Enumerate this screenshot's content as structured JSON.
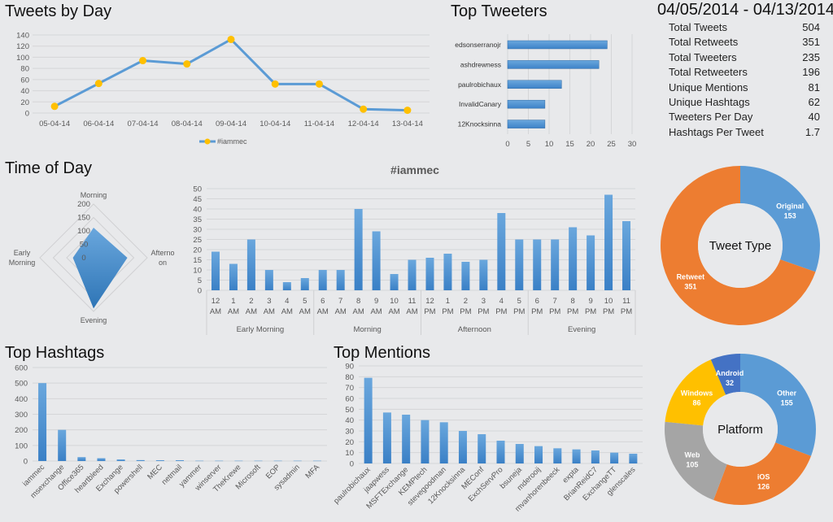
{
  "titles": {
    "tweets_by_day": "Tweets by Day",
    "top_tweeters": "Top Tweeters",
    "date_range": "04/05/2014 - 04/13/2014",
    "time_of_day": "Time of Day",
    "top_hashtags": "Top Hashtags",
    "top_mentions": "Top Mentions"
  },
  "stats": [
    {
      "label": "Total Tweets",
      "value": "504"
    },
    {
      "label": "Total Retweets",
      "value": "351"
    },
    {
      "label": "Total Tweeters",
      "value": "235"
    },
    {
      "label": "Total Retweeters",
      "value": "196"
    },
    {
      "label": "Unique Mentions",
      "value": "81"
    },
    {
      "label": "Unique Hashtags",
      "value": "62"
    },
    {
      "label": "Tweeters Per Day",
      "value": "40"
    },
    {
      "label": "Hashtags Per Tweet",
      "value": "1.7"
    }
  ],
  "colors": {
    "blue": "#5b9bd5",
    "dark_blue": "#2e75b6",
    "orange": "#ed7d31",
    "gray": "#a5a5a5",
    "yellow": "#ffc000",
    "navy": "#4472c4"
  },
  "chart_data": [
    {
      "id": "tweets_by_day",
      "type": "line",
      "title": "Tweets by Day",
      "categories": [
        "05-04-14",
        "06-04-14",
        "07-04-14",
        "08-04-14",
        "09-04-14",
        "10-04-14",
        "11-04-14",
        "12-04-14",
        "13-04-14"
      ],
      "series": [
        {
          "name": "#iammec",
          "values": [
            12,
            53,
            94,
            88,
            132,
            52,
            52,
            7,
            5
          ]
        }
      ],
      "ylim": [
        0,
        140
      ],
      "yticks": [
        0,
        20,
        40,
        60,
        80,
        100,
        120,
        140
      ],
      "grid": true,
      "legend": "bottom"
    },
    {
      "id": "top_tweeters",
      "type": "bar",
      "orientation": "horizontal",
      "title": "Top Tweeters",
      "categories": [
        "edsonserranojr",
        "ashdrewness",
        "paulrobichaux",
        "InvalidCanary",
        "12Knocksinna"
      ],
      "values": [
        24,
        22,
        13,
        9,
        9
      ],
      "xlim": [
        0,
        30
      ],
      "xticks": [
        0,
        5,
        10,
        15,
        20,
        25,
        30
      ]
    },
    {
      "id": "time_of_day",
      "type": "radar",
      "title": "Time of Day",
      "categories": [
        "Morning",
        "Afternoon",
        "Evening",
        "Early Morning"
      ],
      "values": [
        112,
        126,
        189,
        77
      ],
      "rlim": [
        0,
        200
      ],
      "rticks": [
        0,
        50,
        100,
        150,
        200
      ]
    },
    {
      "id": "hourly",
      "type": "bar",
      "title": "#iammec",
      "categories": [
        "12 AM",
        "1 AM",
        "2 AM",
        "3 AM",
        "4 AM",
        "5 AM",
        "6 AM",
        "7 AM",
        "8 AM",
        "9 AM",
        "10 AM",
        "11 AM",
        "12 PM",
        "1 PM",
        "2 PM",
        "3 PM",
        "4 PM",
        "5 PM",
        "6 PM",
        "7 PM",
        "8 PM",
        "9 PM",
        "10 PM",
        "11 PM"
      ],
      "groups": [
        "Early Morning",
        "Morning",
        "Afternoon",
        "Evening"
      ],
      "values": [
        19,
        13,
        25,
        10,
        4,
        6,
        10,
        10,
        40,
        29,
        8,
        15,
        16,
        18,
        14,
        15,
        38,
        25,
        25,
        25,
        31,
        27,
        47,
        34
      ],
      "ylim": [
        0,
        50
      ],
      "yticks": [
        0,
        5,
        10,
        15,
        20,
        25,
        30,
        35,
        40,
        45,
        50
      ]
    },
    {
      "id": "tweet_type",
      "type": "pie",
      "title": "Tweet Type",
      "categories": [
        "Original",
        "Retweet"
      ],
      "values": [
        153,
        351
      ]
    },
    {
      "id": "top_hashtags",
      "type": "bar",
      "title": "Top Hashtags",
      "categories": [
        "iammec",
        "msexchange",
        "Office365",
        "heartbleed",
        "Exchange",
        "powershell",
        "MEC",
        "netmail",
        "yammer",
        "winserver",
        "TheKrewe",
        "Microsoft",
        "EOP",
        "sysadmin",
        "MFA"
      ],
      "values": [
        500,
        200,
        25,
        18,
        10,
        6,
        5,
        5,
        2,
        2,
        2,
        2,
        2,
        2,
        2
      ],
      "ylim": [
        0,
        600
      ],
      "yticks": [
        0,
        100,
        200,
        300,
        400,
        500,
        600
      ]
    },
    {
      "id": "top_mentions",
      "type": "bar",
      "title": "Top Mentions",
      "categories": [
        "paulrobichaux",
        "jaapwess",
        "MSFTExchange",
        "KEMPtech",
        "stevegoodman",
        "12Knocksinna",
        "MEConf",
        "ExchServPro",
        "bsuneja",
        "mderooij",
        "mvanhorenbeeck",
        "expta",
        "BrianReidC7",
        "ExchangeTT",
        "glenscales"
      ],
      "values": [
        79,
        47,
        45,
        40,
        38,
        30,
        27,
        21,
        18,
        16,
        14,
        13,
        12,
        10,
        9
      ],
      "ylim": [
        0,
        90
      ],
      "yticks": [
        0,
        10,
        20,
        30,
        40,
        50,
        60,
        70,
        80,
        90
      ]
    },
    {
      "id": "platform",
      "type": "pie",
      "title": "Platform",
      "categories": [
        "Other",
        "iOS",
        "Web",
        "Windows",
        "Android"
      ],
      "values": [
        155,
        126,
        105,
        86,
        32
      ]
    }
  ]
}
